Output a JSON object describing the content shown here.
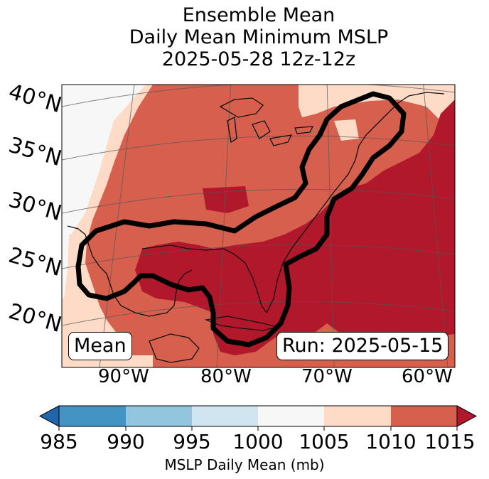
{
  "title": {
    "line1": "Ensemble Mean",
    "line2": "Daily Mean Minimum MSLP",
    "line3": "2025-05-28 12z-12z"
  },
  "map": {
    "lat_labels": [
      "40°N",
      "35°N",
      "30°N",
      "25°N",
      "20°N"
    ],
    "lon_labels": [
      "90°W",
      "80°W",
      "70°W",
      "60°W"
    ],
    "mean_box": "Mean",
    "run_box": "Run: 2025-05-15"
  },
  "colorbar": {
    "label": "MSLP Daily Mean (mb)",
    "ticks": [
      "985",
      "990",
      "995",
      "1000",
      "1005",
      "1010",
      "1015"
    ],
    "colors": {
      "below": "#2166ac",
      "b985_990": "#4393c3",
      "b990_995": "#92c5de",
      "b995_1000": "#d1e5f0",
      "b1000_1005": "#f7f7f7",
      "b1005_1010": "#fddbc7",
      "b1010_1015": "#d6604d",
      "above": "#b2182b"
    }
  }
}
